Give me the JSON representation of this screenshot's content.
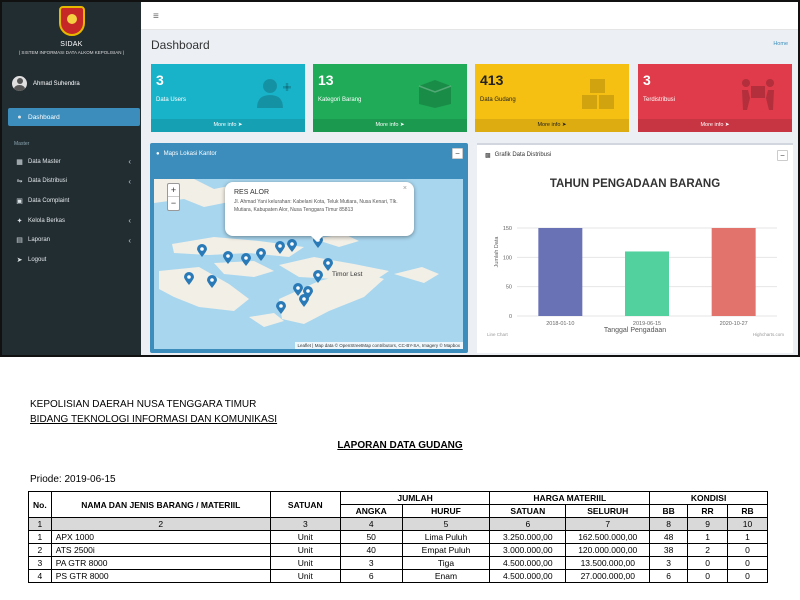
{
  "app": {
    "brand": {
      "name": "SIDAK",
      "subtitle": "( SISTEM INFORMASI DATA ALKOM KEPOLISIAN )"
    },
    "user": {
      "name": "Ahmad Suhendra"
    },
    "nav": {
      "active": "Dashboard",
      "header": "Master",
      "items": [
        {
          "label": "Data Master",
          "icon": "folder-icon",
          "has_submenu": true
        },
        {
          "label": "Data Distribusi",
          "icon": "shuffle-icon",
          "has_submenu": true
        },
        {
          "label": "Data Complaint",
          "icon": "file-icon",
          "has_submenu": false
        },
        {
          "label": "Kelola Berkas",
          "icon": "tools-icon",
          "has_submenu": true
        },
        {
          "label": "Laporan",
          "icon": "report-icon",
          "has_submenu": true
        },
        {
          "label": "Logout",
          "icon": "logout-icon",
          "has_submenu": false
        }
      ]
    },
    "topbar": {
      "menu_icon": "hamburger-icon"
    },
    "page_title": "Dashboard",
    "home_link": "Home",
    "stat_boxes": [
      {
        "value": "3",
        "label": "Data Users",
        "footer": "More info",
        "color": "#19b3c9",
        "icon": "add-user-icon"
      },
      {
        "value": "13",
        "label": "Kategori Barang",
        "footer": "More info",
        "color": "#1fab57",
        "icon": "box-icon"
      },
      {
        "value": "413",
        "label": "Data Gudang",
        "footer": "More info",
        "color": "#f5c012",
        "icon": "boxes-icon"
      },
      {
        "value": "3",
        "label": "Terdistribusi",
        "footer": "More info",
        "color": "#df3b4a",
        "icon": "people-carry-icon"
      }
    ],
    "map_panel": {
      "title": "Maps Lokasi Kantor",
      "popup": {
        "title": "RES ALOR",
        "text": "Jl. Ahmad Yani kelurahan: Kabelani Kota, Teluk Mutiara, Nusa Kenari, Tlk. Mutiara, Kabupaten Alor, Nusa Tenggara Timur 85813"
      },
      "label": "Timor Lest",
      "attribution": "Leaflet | Map data © OpenStreetMap contributors, CC-BY-SA, Imagery © Mapbox"
    },
    "chart_panel": {
      "title": "Grafik Data Distribusi"
    }
  },
  "chart_data": {
    "type": "bar",
    "title": "TAHUN PENGADAAN BARANG",
    "xlabel": "Tanggal Pengadaan",
    "ylabel": "Jumlah Data",
    "categories": [
      "2018-01-10",
      "2019-06-15",
      "2020-10-27"
    ],
    "values": [
      150,
      110,
      150
    ],
    "colors": [
      "#6a72b6",
      "#52d19e",
      "#e2736c"
    ],
    "ylim": [
      0,
      150
    ],
    "yticks": [
      0,
      50,
      100,
      150
    ],
    "grid": true,
    "credit": "Highcharts.com",
    "credit_left": "Line Chart"
  },
  "report": {
    "org": "KEPOLISIAN DAERAH NUSA TENGGARA TIMUR",
    "division": "BIDANG TEKNOLOGI INFORMASI DAN KOMUNIKASI",
    "title": "LAPORAN DATA GUDANG",
    "period": "Priode: 2019-06-15",
    "headers": {
      "no": "No.",
      "name": "NAMA DAN JENIS BARANG / MATERIIL",
      "unit": "SATUAN",
      "jumlah": "JUMLAH",
      "angka": "ANGKA",
      "huruf": "HURUF",
      "harga": "HARGA MATERIIL",
      "satuan": "SATUAN",
      "seluruh": "SELURUH",
      "kondisi": "KONDISI",
      "bb": "BB",
      "rr": "RR",
      "rb": "RB"
    },
    "index_row": [
      "1",
      "2",
      "3",
      "4",
      "5",
      "6",
      "7",
      "8",
      "9",
      "10"
    ],
    "rows": [
      [
        "1",
        "APX 1000",
        "Unit",
        "50",
        "Lima Puluh",
        "3.250.000,00",
        "162.500.000,00",
        "48",
        "1",
        "1"
      ],
      [
        "2",
        "ATS 2500i",
        "Unit",
        "40",
        "Empat Puluh",
        "3.000.000,00",
        "120.000.000,00",
        "38",
        "2",
        "0"
      ],
      [
        "3",
        "PA GTR 8000",
        "Unit",
        "3",
        "Tiga",
        "4.500.000,00",
        "13.500.000,00",
        "3",
        "0",
        "0"
      ],
      [
        "4",
        "PS GTR 8000",
        "Unit",
        "6",
        "Enam",
        "4.500.000,00",
        "27.000.000,00",
        "6",
        "0",
        "0"
      ]
    ]
  }
}
